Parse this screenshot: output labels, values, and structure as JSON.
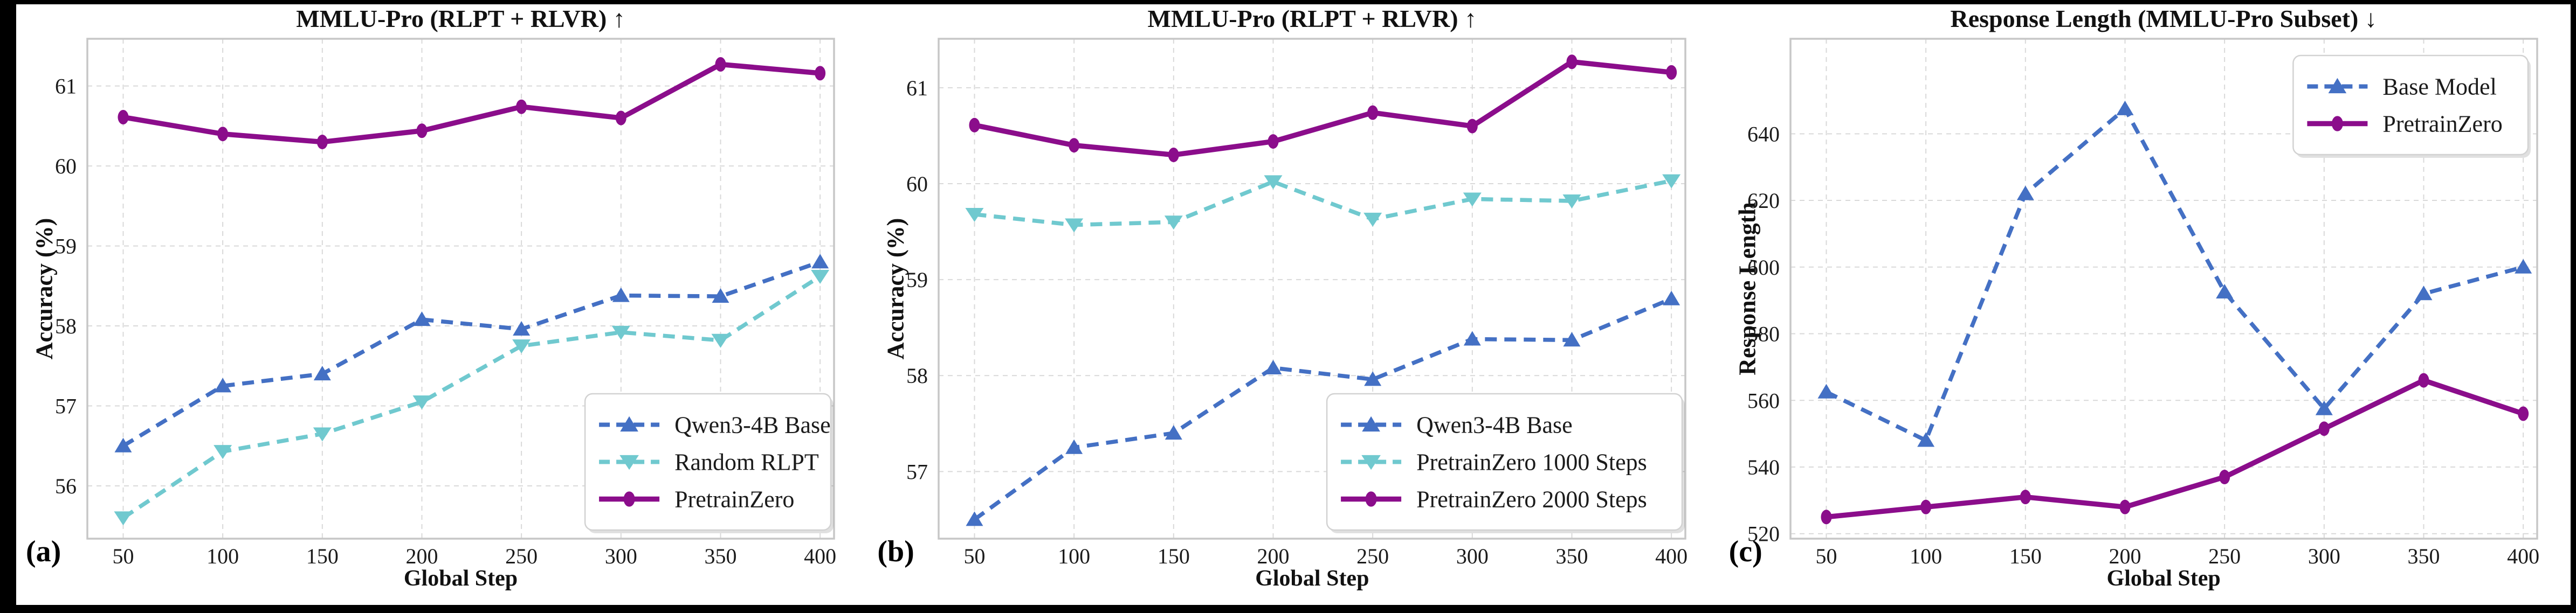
{
  "figure": {
    "background": "#000000",
    "canvas": "#ffffff",
    "grid_color": "#d9d9d9",
    "spine_color": "#c7c7c7",
    "text_color": "#1b1b1b"
  },
  "chart_data": [
    {
      "type": "line",
      "panel_label": "(a)",
      "title": "MMLU-Pro (RLPT + RLVR) ↑",
      "xlabel": "Global Step",
      "ylabel": "Accuracy (%)",
      "x": [
        50,
        100,
        150,
        200,
        250,
        300,
        350,
        400
      ],
      "xticks": [
        50,
        100,
        150,
        200,
        250,
        300,
        350,
        400
      ],
      "xlim": [
        32,
        407
      ],
      "yticks": [
        56,
        57,
        58,
        59,
        60,
        61
      ],
      "ylim": [
        55.34,
        61.59
      ],
      "grid": true,
      "legend_position": "lower-right",
      "series": [
        {
          "name": "Qwen3-4B Base",
          "color": "#4470C4",
          "line": "dashed",
          "marker": "triangle-up",
          "values": [
            56.5,
            57.25,
            57.4,
            58.08,
            57.96,
            58.38,
            58.37,
            58.8
          ]
        },
        {
          "name": "Random RLPT",
          "color": "#70C9CF",
          "line": "dashed",
          "marker": "triangle-down",
          "values": [
            55.6,
            56.43,
            56.65,
            57.05,
            57.75,
            57.92,
            57.82,
            58.62
          ]
        },
        {
          "name": "PretrainZero",
          "color": "#8B0D8B",
          "line": "solid",
          "marker": "ellipse",
          "values": [
            60.61,
            60.4,
            60.3,
            60.44,
            60.74,
            60.6,
            61.27,
            61.16
          ]
        }
      ]
    },
    {
      "type": "line",
      "panel_label": "(b)",
      "title": "MMLU-Pro (RLPT + RLVR) ↑",
      "xlabel": "Global Step",
      "ylabel": "Accuracy (%)",
      "x": [
        50,
        100,
        150,
        200,
        250,
        300,
        350,
        400
      ],
      "xticks": [
        50,
        100,
        150,
        200,
        250,
        300,
        350,
        400
      ],
      "xlim": [
        32,
        407
      ],
      "yticks": [
        57,
        58,
        59,
        60,
        61
      ],
      "ylim": [
        56.3,
        61.51
      ],
      "grid": true,
      "legend_position": "lower-right",
      "series": [
        {
          "name": "Qwen3-4B Base",
          "color": "#4470C4",
          "line": "dashed",
          "marker": "triangle-up",
          "values": [
            56.5,
            57.25,
            57.4,
            58.08,
            57.96,
            58.38,
            58.37,
            58.8
          ]
        },
        {
          "name": "PretrainZero 1000 Steps",
          "color": "#70C9CF",
          "line": "dashed",
          "marker": "triangle-down",
          "values": [
            59.68,
            59.57,
            59.6,
            60.02,
            59.63,
            59.84,
            59.82,
            60.03
          ]
        },
        {
          "name": "PretrainZero 2000 Steps",
          "color": "#8B0D8B",
          "line": "solid",
          "marker": "ellipse",
          "values": [
            60.61,
            60.4,
            60.3,
            60.44,
            60.74,
            60.6,
            61.27,
            61.16
          ]
        }
      ]
    },
    {
      "type": "line",
      "panel_label": "(c)",
      "title": "Response Length (MMLU-Pro Subset) ↓",
      "xlabel": "Global Step",
      "ylabel": "Response Length",
      "x": [
        50,
        100,
        150,
        200,
        250,
        300,
        350,
        400
      ],
      "xticks": [
        50,
        100,
        150,
        200,
        250,
        300,
        350,
        400
      ],
      "xlim": [
        32,
        407
      ],
      "yticks": [
        520,
        540,
        560,
        580,
        600,
        620,
        640
      ],
      "ylim": [
        518.5,
        668.5
      ],
      "grid": true,
      "legend_position": "upper-right",
      "series": [
        {
          "name": "Base Model",
          "color": "#4470C4",
          "line": "dashed",
          "marker": "triangle-up",
          "values": [
            562.5,
            548,
            622,
            647.5,
            592.5,
            557.5,
            592,
            600
          ]
        },
        {
          "name": "PretrainZero",
          "color": "#8B0D8B",
          "line": "solid",
          "marker": "ellipse",
          "values": [
            525,
            528,
            531,
            528,
            537,
            551.5,
            566,
            556
          ]
        }
      ]
    }
  ]
}
